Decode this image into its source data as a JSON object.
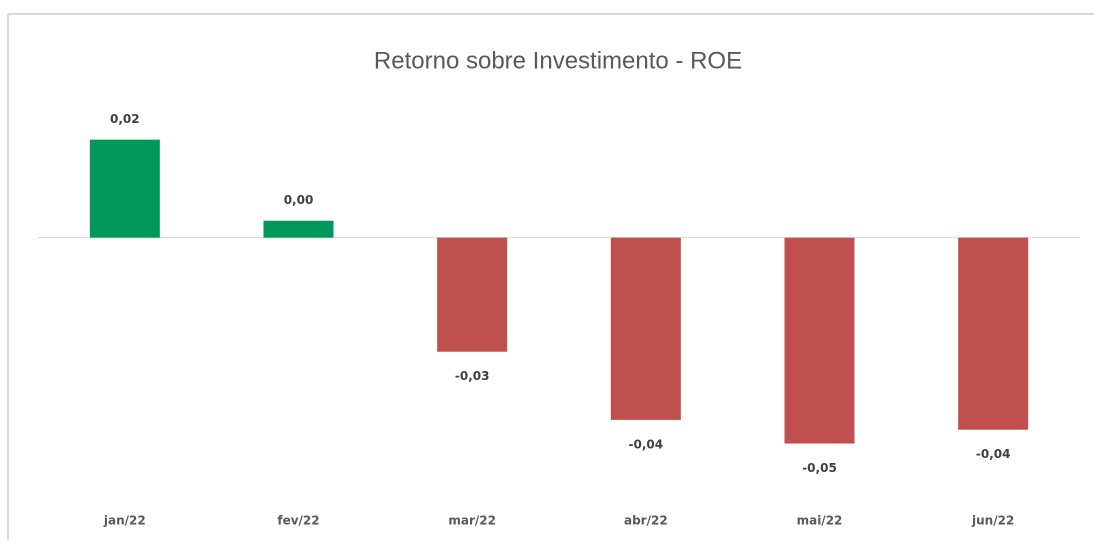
{
  "chart_data": {
    "type": "bar",
    "title": "Retorno sobre Investimento - ROE",
    "categories": [
      "jan/22",
      "fev/22",
      "mar/22",
      "abr/22",
      "mai/22",
      "jun/22"
    ],
    "values": [
      0.022,
      0.0038,
      -0.0256,
      -0.0409,
      -0.0462,
      -0.0431
    ],
    "value_labels": [
      "0,02",
      "0,00",
      "-0,03",
      "-0,04",
      "-0,05",
      "-0,04"
    ],
    "colors": [
      "#00975a",
      "#00975a",
      "#c0504d",
      "#c0504d",
      "#c0504d",
      "#c0504d"
    ],
    "ylim": [
      -0.06,
      0.03
    ]
  }
}
